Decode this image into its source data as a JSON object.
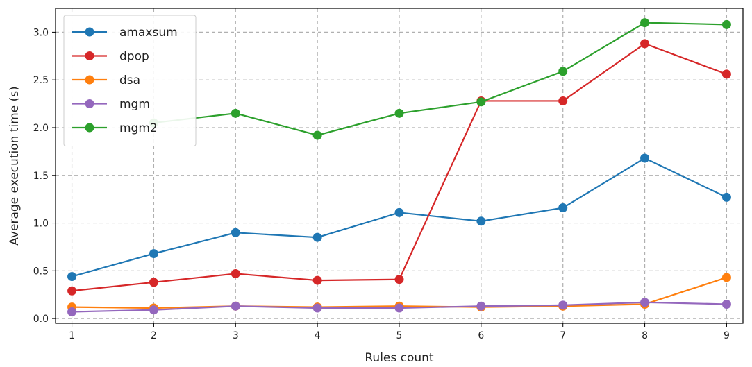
{
  "chart_data": {
    "type": "line",
    "title": "",
    "xlabel": "Rules  count",
    "ylabel": "Average execution time (s)",
    "x": [
      1,
      2,
      3,
      4,
      5,
      6,
      7,
      8,
      9
    ],
    "xlim": [
      0.8,
      9.2
    ],
    "ylim": [
      -0.05,
      3.25
    ],
    "xticks": [
      1,
      2,
      3,
      4,
      5,
      6,
      7,
      8,
      9
    ],
    "yticks": [
      0.0,
      0.5,
      1.0,
      1.5,
      2.0,
      2.5,
      3.0
    ],
    "ytick_labels": [
      "0.0",
      "0.5",
      "1.0",
      "1.5",
      "2.0",
      "2.5",
      "3.0"
    ],
    "grid": true,
    "legend_position": "top-left",
    "series": [
      {
        "name": "amaxsum",
        "color": "#1f77b4",
        "values": [
          0.44,
          0.68,
          0.9,
          0.85,
          1.11,
          1.02,
          1.16,
          1.68,
          1.27
        ]
      },
      {
        "name": "dpop",
        "color": "#d62728",
        "values": [
          0.29,
          0.38,
          0.47,
          0.4,
          0.41,
          2.28,
          2.28,
          2.88,
          2.56
        ]
      },
      {
        "name": "dsa",
        "color": "#ff7f0e",
        "values": [
          0.12,
          0.11,
          0.13,
          0.12,
          0.13,
          0.12,
          0.13,
          0.15,
          0.43
        ]
      },
      {
        "name": "mgm",
        "color": "#9467bd",
        "values": [
          0.07,
          0.09,
          0.13,
          0.11,
          0.11,
          0.13,
          0.14,
          0.17,
          0.15
        ]
      },
      {
        "name": "mgm2",
        "color": "#2ca02c",
        "values": [
          null,
          2.05,
          2.15,
          1.92,
          2.15,
          2.27,
          2.59,
          3.1,
          3.08
        ]
      }
    ]
  }
}
